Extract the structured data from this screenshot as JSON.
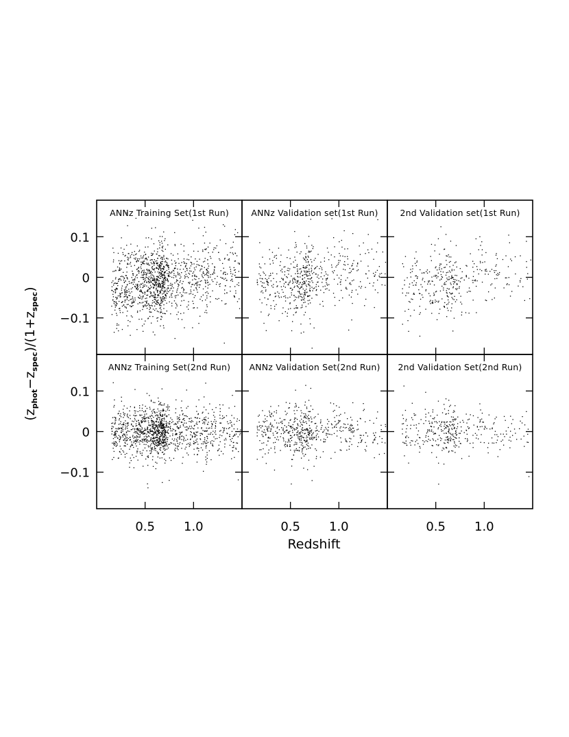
{
  "chart_data": [
    {
      "type": "scatter",
      "title": "ANNz Training Set(1st Run)",
      "x_range": [
        0.0,
        1.5
      ],
      "ylim": [
        -0.19,
        0.19
      ],
      "density": "high",
      "scatter_sd": 0.042,
      "trend": "rising",
      "points_per_unit_x": 1600
    },
    {
      "type": "scatter",
      "title": "ANNz Validation set(1st Run)",
      "x_range": [
        0.0,
        1.5
      ],
      "ylim": [
        -0.19,
        0.19
      ],
      "density": "medium",
      "scatter_sd": 0.042,
      "trend": "rising",
      "points_per_unit_x": 700
    },
    {
      "type": "scatter",
      "title": "2nd Validation set(1st Run)",
      "x_range": [
        0.0,
        1.5
      ],
      "ylim": [
        -0.19,
        0.19
      ],
      "density": "low",
      "scatter_sd": 0.04,
      "trend": "rising",
      "points_per_unit_x": 450
    },
    {
      "type": "scatter",
      "title": "ANNz Training Set(2nd Run)",
      "x_range": [
        0.0,
        1.5
      ],
      "ylim": [
        -0.19,
        0.19
      ],
      "density": "high",
      "scatter_sd": 0.03,
      "trend": "flat",
      "points_per_unit_x": 1600
    },
    {
      "type": "scatter",
      "title": "ANNz Validation Set(2nd Run)",
      "x_range": [
        0.0,
        1.5
      ],
      "ylim": [
        -0.19,
        0.19
      ],
      "density": "medium",
      "scatter_sd": 0.03,
      "trend": "flat",
      "points_per_unit_x": 700
    },
    {
      "type": "scatter",
      "title": "2nd Validation Set(2nd Run)",
      "x_range": [
        0.0,
        1.5
      ],
      "ylim": [
        -0.19,
        0.19
      ],
      "density": "low",
      "scatter_sd": 0.028,
      "trend": "flat",
      "points_per_unit_x": 450
    }
  ],
  "axes": {
    "xlabel": "Redshift",
    "ylabel_parts": [
      "(z",
      "phot",
      "−z",
      "spec",
      ")/(1+z",
      "spec",
      ")"
    ],
    "x_ticks": [
      0.5,
      1.0
    ],
    "x_tick_labels": [
      "0.5",
      "1.0"
    ],
    "y_ticks": [
      0.1,
      0,
      -0.1
    ],
    "y_tick_labels": [
      "0.1",
      "0",
      "−0.1"
    ]
  },
  "colors": {
    "points": "#000000",
    "frame": "#000000",
    "background": "#ffffff"
  }
}
